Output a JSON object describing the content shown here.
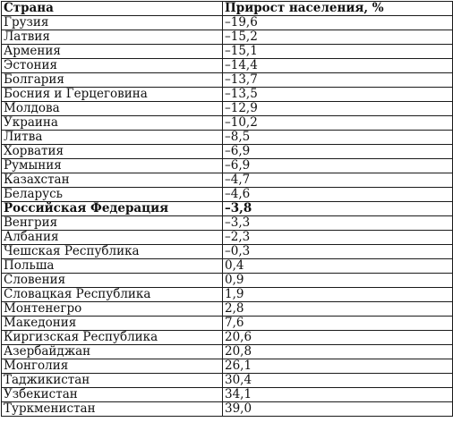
{
  "table": {
    "headers": [
      "Страна",
      "Прирост населения, %"
    ],
    "highlighted_row": "Российская Федерация",
    "rows": [
      [
        "Грузия",
        "–19,6"
      ],
      [
        "Латвия",
        "–15,2"
      ],
      [
        "Армения",
        "–15,1"
      ],
      [
        "Эстония",
        "–14,4"
      ],
      [
        "Болгария",
        "–13,7"
      ],
      [
        "Босния и Герцеговина",
        "–13,5"
      ],
      [
        "Молдова",
        "–12,9"
      ],
      [
        "Украина",
        "–10,2"
      ],
      [
        "Литва",
        "–8,5"
      ],
      [
        "Хорватия",
        "–6,9"
      ],
      [
        "Румыния",
        "–6,9"
      ],
      [
        "Казахстан",
        "–4,7"
      ],
      [
        "Беларусь",
        "–4,6"
      ],
      [
        "Российская Федерация",
        "–3,8"
      ],
      [
        "Венгрия",
        "–3,3"
      ],
      [
        "Албания",
        "–2,3"
      ],
      [
        "Чешская Республика",
        "–0,3"
      ],
      [
        "Польша",
        "0,4"
      ],
      [
        "Словения",
        "0,9"
      ],
      [
        "Словацкая Республика",
        "1,9"
      ],
      [
        "Монтенегро",
        "2,8"
      ],
      [
        "Македония",
        "7,6"
      ],
      [
        "Киргизская Республика",
        "20,6"
      ],
      [
        "Азербайджан",
        "20,8"
      ],
      [
        "Монголия",
        "26,1"
      ],
      [
        "Таджикистан",
        "30,4"
      ],
      [
        "Узбекистан",
        "34,1"
      ],
      [
        "Туркменистан",
        "39,0"
      ]
    ]
  }
}
